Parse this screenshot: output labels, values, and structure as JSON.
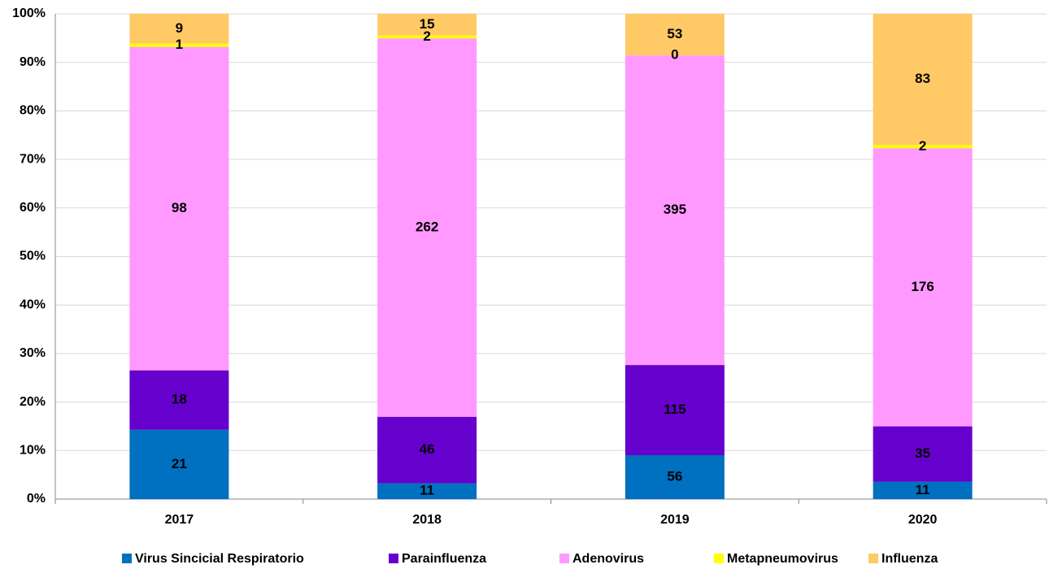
{
  "chart_data": {
    "type": "bar",
    "stacking": "percent",
    "categories": [
      "2017",
      "2018",
      "2019",
      "2020"
    ],
    "series": [
      {
        "name": "Virus Sincicial Respiratorio",
        "color": "#0070c0",
        "values": [
          21,
          11,
          56,
          11
        ]
      },
      {
        "name": "Parainfluenza",
        "color": "#6600cc",
        "values": [
          18,
          46,
          115,
          35
        ]
      },
      {
        "name": "Adenovirus",
        "color": "#ff99ff",
        "values": [
          98,
          262,
          395,
          176
        ]
      },
      {
        "name": "Metapneumovirus",
        "color": "#ffff00",
        "values": [
          1,
          2,
          0,
          2
        ]
      },
      {
        "name": "Influenza",
        "color": "#ffc966",
        "values": [
          9,
          15,
          53,
          83
        ]
      }
    ],
    "ylim": [
      0,
      100
    ],
    "yticks": [
      {
        "value": 0,
        "label": "0%"
      },
      {
        "value": 10,
        "label": "10%"
      },
      {
        "value": 20,
        "label": "20%"
      },
      {
        "value": 30,
        "label": "30%"
      },
      {
        "value": 40,
        "label": "40%"
      },
      {
        "value": 50,
        "label": "50%"
      },
      {
        "value": 60,
        "label": "60%"
      },
      {
        "value": 70,
        "label": "70%"
      },
      {
        "value": 80,
        "label": "80%"
      },
      {
        "value": 90,
        "label": "90%"
      },
      {
        "value": 100,
        "label": "100%"
      }
    ],
    "grid": true,
    "legend": "bottom"
  }
}
